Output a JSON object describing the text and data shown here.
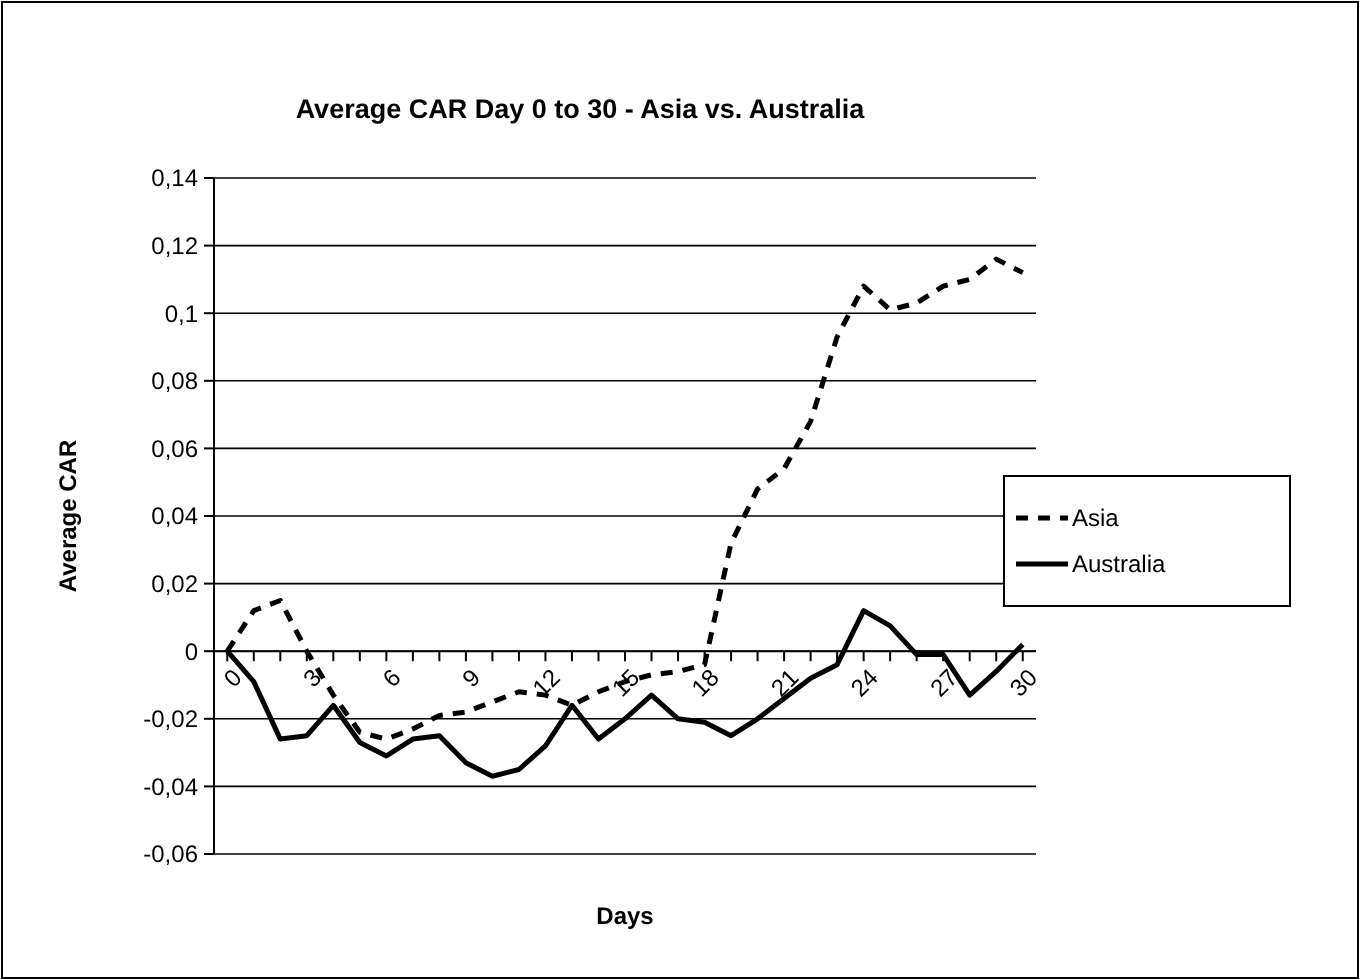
{
  "chart_data": {
    "type": "line",
    "title": "Average CAR Day 0 to 30 - Asia vs. Australia",
    "xlabel": "Days",
    "ylabel": "Average CAR",
    "categories": [
      "0",
      null,
      null,
      "3",
      null,
      null,
      "6",
      null,
      null,
      "9",
      null,
      null,
      "12",
      null,
      null,
      "15",
      null,
      null,
      "18",
      null,
      null,
      "21",
      null,
      null,
      "24",
      null,
      null,
      "27",
      null,
      null,
      "30"
    ],
    "series": [
      {
        "name": "Asia",
        "color": "#000000",
        "line_style": "dashed",
        "values": [
          0,
          0.012,
          0.015,
          0,
          -0.013,
          -0.024,
          -0.026,
          -0.023,
          -0.019,
          -0.018,
          -0.015,
          -0.012,
          -0.013,
          -0.016,
          -0.012,
          -0.009,
          -0.007,
          -0.006,
          -0.004,
          0.032,
          0.048,
          0.054,
          0.068,
          0.093,
          0.108,
          0.101,
          0.103,
          0.108,
          0.11,
          0.116,
          0.112
        ]
      },
      {
        "name": "Australia",
        "color": "#000000",
        "line_style": "solid",
        "values": [
          0,
          -0.009,
          -0.026,
          -0.025,
          -0.016,
          -0.027,
          -0.031,
          -0.026,
          -0.025,
          -0.033,
          -0.037,
          -0.035,
          -0.028,
          -0.016,
          -0.026,
          -0.02,
          -0.013,
          -0.02,
          -0.021,
          -0.025,
          -0.02,
          -0.014,
          -0.008,
          -0.004,
          0.012,
          0.0075,
          -0.001,
          -0.001,
          -0.013,
          -0.006,
          0.002
        ]
      }
    ],
    "ylim": [
      -0.06,
      0.14
    ],
    "yticks": [
      {
        "value": -0.06,
        "label": "-0,06"
      },
      {
        "value": -0.04,
        "label": "-0,04"
      },
      {
        "value": -0.02,
        "label": "-0,02"
      },
      0,
      {
        "value": 0.02,
        "label": "0,02"
      },
      {
        "value": 0.04,
        "label": "0,04"
      },
      {
        "value": 0.06,
        "label": "0,06"
      },
      {
        "value": 0.08,
        "label": "0,08"
      },
      {
        "value": 0.1,
        "label": "0,1"
      },
      {
        "value": 0.12,
        "label": "0,12"
      },
      {
        "value": 0.14,
        "label": "0,14"
      }
    ],
    "grid": "y",
    "legend": "right"
  }
}
